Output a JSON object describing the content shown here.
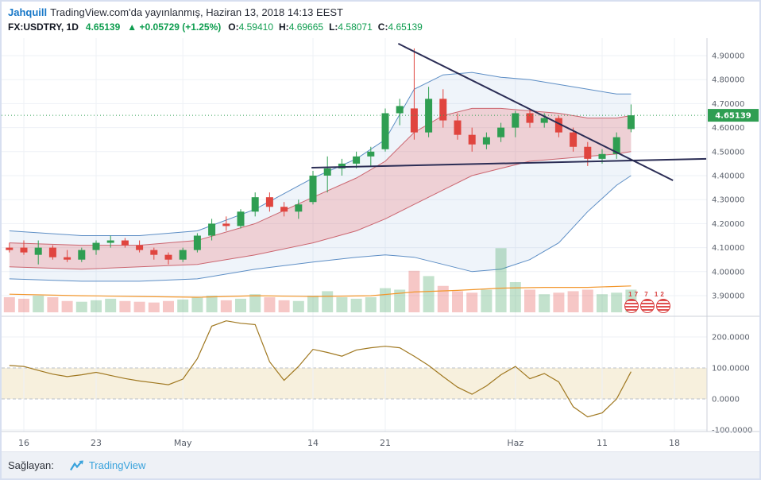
{
  "header": {
    "author": "Jahquill",
    "published": "TradingView.com'da yayınlanmış, Haziran 13, 2018 14:13 EEST",
    "symbol": "FX:USDTRY, 1D",
    "price": "4.65139",
    "arrow": "▲",
    "change": "+0.05729 (+1.25%)",
    "ohlc": {
      "o_label": "O:",
      "o": "4.59410",
      "h_label": "H:",
      "h": "4.69665",
      "l_label": "L:",
      "l": "4.58071",
      "c_label": "C:",
      "c": "4.65139"
    }
  },
  "footer": {
    "label": "Sağlayan:",
    "brand": "TradingView"
  },
  "publisher_logo": {
    "numbers": "17 7 12"
  },
  "colors": {
    "up": "#2f9e52",
    "down": "#e0453f",
    "vol_up": "rgba(57,160,90,0.30)",
    "vol_down": "rgba(224,70,66,0.30)",
    "band_outer": "#5d8ec5",
    "band_inner": "#cb6670",
    "band_outer_fill": "rgba(100,150,210,0.10)",
    "band_inner_fill": "rgba(239,83,80,0.22)",
    "volume_ma": "#f2962b",
    "momentum": "#a07820",
    "trendline": "#2b2d55",
    "cream": "#f7f0dd"
  },
  "chart_data": {
    "type": "candlestick",
    "symbol": "FX:USDTRY",
    "interval": "1D",
    "current_price": 4.65139,
    "current_price_label": "4.65139",
    "y_axis_main": {
      "ticks": [
        4.9,
        4.8,
        4.7,
        4.6,
        4.5,
        4.4,
        4.3,
        4.2,
        4.1,
        4.0,
        3.9
      ]
    },
    "y_axis_ind": {
      "ticks": [
        200,
        100,
        0,
        -100
      ]
    },
    "momentum_band": [
      100,
      0
    ],
    "x_axis": {
      "labels": [
        {
          "text": "16",
          "i": 0
        },
        {
          "text": "23",
          "i": 5
        },
        {
          "text": "May",
          "i": 11
        },
        {
          "text": "14",
          "i": 20
        },
        {
          "text": "21",
          "i": 25
        },
        {
          "text": "Haz",
          "i": 34
        },
        {
          "text": "11",
          "i": 40
        },
        {
          "text": "18",
          "i": 45
        }
      ]
    },
    "candles": [
      [
        4.1,
        4.12,
        4.08,
        4.09
      ],
      [
        4.1,
        4.13,
        4.07,
        4.08
      ],
      [
        4.07,
        4.13,
        4.03,
        4.1
      ],
      [
        4.1,
        4.11,
        4.05,
        4.06
      ],
      [
        4.06,
        4.09,
        4.04,
        4.05
      ],
      [
        4.05,
        4.1,
        4.04,
        4.09
      ],
      [
        4.09,
        4.13,
        4.07,
        4.12
      ],
      [
        4.12,
        4.15,
        4.1,
        4.13
      ],
      [
        4.13,
        4.14,
        4.1,
        4.11
      ],
      [
        4.11,
        4.13,
        4.08,
        4.09
      ],
      [
        4.09,
        4.1,
        4.05,
        4.07
      ],
      [
        4.07,
        4.08,
        4.03,
        4.05
      ],
      [
        4.05,
        4.1,
        4.04,
        4.09
      ],
      [
        4.09,
        4.16,
        4.08,
        4.15
      ],
      [
        4.15,
        4.22,
        4.13,
        4.2
      ],
      [
        4.2,
        4.23,
        4.17,
        4.19
      ],
      [
        4.19,
        4.26,
        4.18,
        4.25
      ],
      [
        4.25,
        4.33,
        4.23,
        4.31
      ],
      [
        4.31,
        4.33,
        4.25,
        4.27
      ],
      [
        4.27,
        4.29,
        4.23,
        4.25
      ],
      [
        4.25,
        4.3,
        4.22,
        4.28
      ],
      [
        4.29,
        4.42,
        4.28,
        4.4
      ],
      [
        4.4,
        4.48,
        4.33,
        4.43
      ],
      [
        4.43,
        4.47,
        4.4,
        4.45
      ],
      [
        4.45,
        4.5,
        4.43,
        4.48
      ],
      [
        4.48,
        4.52,
        4.44,
        4.5
      ],
      [
        4.51,
        4.68,
        4.5,
        4.66
      ],
      [
        4.66,
        4.72,
        4.61,
        4.69
      ],
      [
        4.68,
        4.93,
        4.55,
        4.58
      ],
      [
        4.58,
        4.77,
        4.56,
        4.72
      ],
      [
        4.72,
        4.76,
        4.6,
        4.63
      ],
      [
        4.63,
        4.66,
        4.55,
        4.57
      ],
      [
        4.57,
        4.6,
        4.5,
        4.53
      ],
      [
        4.53,
        4.58,
        4.51,
        4.56
      ],
      [
        4.56,
        4.62,
        4.54,
        4.6
      ],
      [
        4.6,
        4.67,
        4.56,
        4.66
      ],
      [
        4.66,
        4.68,
        4.6,
        4.62
      ],
      [
        4.62,
        4.66,
        4.6,
        4.64
      ],
      [
        4.64,
        4.65,
        4.56,
        4.58
      ],
      [
        4.58,
        4.6,
        4.5,
        4.52
      ],
      [
        4.52,
        4.54,
        4.44,
        4.47
      ],
      [
        4.47,
        4.51,
        4.45,
        4.49
      ],
      [
        4.49,
        4.58,
        4.47,
        4.56
      ],
      [
        4.5941,
        4.69665,
        4.58071,
        4.65139
      ]
    ],
    "volume": [
      20,
      18,
      22,
      20,
      15,
      14,
      16,
      18,
      15,
      14,
      13,
      15,
      17,
      20,
      22,
      16,
      18,
      24,
      20,
      16,
      15,
      22,
      28,
      20,
      18,
      20,
      32,
      30,
      55,
      48,
      35,
      28,
      26,
      30,
      85,
      40,
      30,
      24,
      26,
      28,
      30,
      24,
      26,
      30
    ],
    "volume_ma": [
      [
        -1,
        24
      ],
      [
        4,
        22
      ],
      [
        8,
        21
      ],
      [
        12,
        20
      ],
      [
        16,
        22
      ],
      [
        20,
        21
      ],
      [
        24,
        22
      ],
      [
        27,
        27
      ],
      [
        30,
        29
      ],
      [
        33,
        32
      ],
      [
        36,
        33
      ],
      [
        39,
        33
      ],
      [
        42,
        35
      ]
    ],
    "momentum": [
      108,
      105,
      92,
      80,
      72,
      78,
      86,
      76,
      66,
      58,
      52,
      46,
      64,
      130,
      235,
      252,
      244,
      240,
      120,
      60,
      105,
      160,
      150,
      138,
      158,
      165,
      170,
      165,
      138,
      108,
      72,
      38,
      15,
      42,
      78,
      105,
      65,
      82,
      55,
      -25,
      -58,
      -45,
      0,
      88
    ],
    "bands": {
      "outer_upper": [
        [
          -1,
          4.17
        ],
        [
          4,
          4.15
        ],
        [
          8,
          4.15
        ],
        [
          12,
          4.17
        ],
        [
          16,
          4.26
        ],
        [
          20,
          4.39
        ],
        [
          23,
          4.47
        ],
        [
          25,
          4.55
        ],
        [
          27,
          4.76
        ],
        [
          29,
          4.82
        ],
        [
          31,
          4.83
        ],
        [
          33,
          4.81
        ],
        [
          35,
          4.8
        ],
        [
          37,
          4.78
        ],
        [
          39,
          4.76
        ],
        [
          41,
          4.74
        ],
        [
          42,
          4.74
        ]
      ],
      "outer_lower": [
        [
          -1,
          3.97
        ],
        [
          4,
          3.96
        ],
        [
          8,
          3.96
        ],
        [
          12,
          3.97
        ],
        [
          16,
          4.01
        ],
        [
          20,
          4.04
        ],
        [
          23,
          4.06
        ],
        [
          25,
          4.07
        ],
        [
          27,
          4.06
        ],
        [
          29,
          4.03
        ],
        [
          31,
          4.0
        ],
        [
          33,
          4.01
        ],
        [
          35,
          4.05
        ],
        [
          37,
          4.12
        ],
        [
          39,
          4.25
        ],
        [
          41,
          4.36
        ],
        [
          42,
          4.4
        ]
      ],
      "inner_upper": [
        [
          -1,
          4.12
        ],
        [
          4,
          4.11
        ],
        [
          8,
          4.11
        ],
        [
          12,
          4.13
        ],
        [
          16,
          4.2
        ],
        [
          20,
          4.31
        ],
        [
          23,
          4.39
        ],
        [
          25,
          4.46
        ],
        [
          27,
          4.58
        ],
        [
          29,
          4.65
        ],
        [
          31,
          4.68
        ],
        [
          33,
          4.68
        ],
        [
          35,
          4.67
        ],
        [
          37,
          4.66
        ],
        [
          39,
          4.64
        ],
        [
          41,
          4.64
        ],
        [
          42,
          4.65
        ]
      ],
      "inner_lower": [
        [
          -1,
          4.02
        ],
        [
          4,
          4.01
        ],
        [
          8,
          4.02
        ],
        [
          12,
          4.03
        ],
        [
          16,
          4.07
        ],
        [
          20,
          4.12
        ],
        [
          23,
          4.17
        ],
        [
          25,
          4.22
        ],
        [
          27,
          4.28
        ],
        [
          29,
          4.34
        ],
        [
          31,
          4.4
        ],
        [
          33,
          4.43
        ],
        [
          35,
          4.46
        ],
        [
          37,
          4.47
        ],
        [
          39,
          4.48
        ],
        [
          41,
          4.49
        ],
        [
          42,
          4.5
        ]
      ]
    },
    "trendlines": [
      {
        "i1": 25.9,
        "p1": 4.95,
        "i2": 44.9,
        "p2": 4.38
      },
      {
        "i1": 19.9,
        "p1": 4.433,
        "i2": 47.2,
        "p2": 4.47
      }
    ]
  }
}
